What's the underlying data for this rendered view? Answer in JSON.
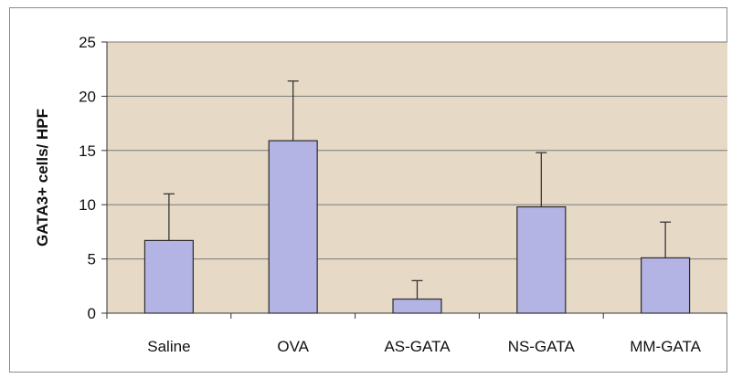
{
  "chart_data": {
    "type": "bar",
    "title": "",
    "xlabel": "",
    "ylabel": "GATA3+ cells/ HPF",
    "categories": [
      "Saline",
      "OVA",
      "AS-GATA",
      "NS-GATA",
      "MM-GATA"
    ],
    "values": [
      6.7,
      15.9,
      1.3,
      9.8,
      5.1
    ],
    "error_upper": [
      11.0,
      21.4,
      3.0,
      14.8,
      8.4
    ],
    "ylim": [
      0,
      25
    ],
    "yticks": [
      0,
      5,
      10,
      15,
      20,
      25
    ],
    "grid": true,
    "legend": "none"
  },
  "colors": {
    "plot_background": "#e6d9c6",
    "bar_fill": "#b3b3e4",
    "bar_stroke": "#2b2b2b",
    "gridline": "#7a7a7a",
    "frame": "#8a8a8a"
  }
}
